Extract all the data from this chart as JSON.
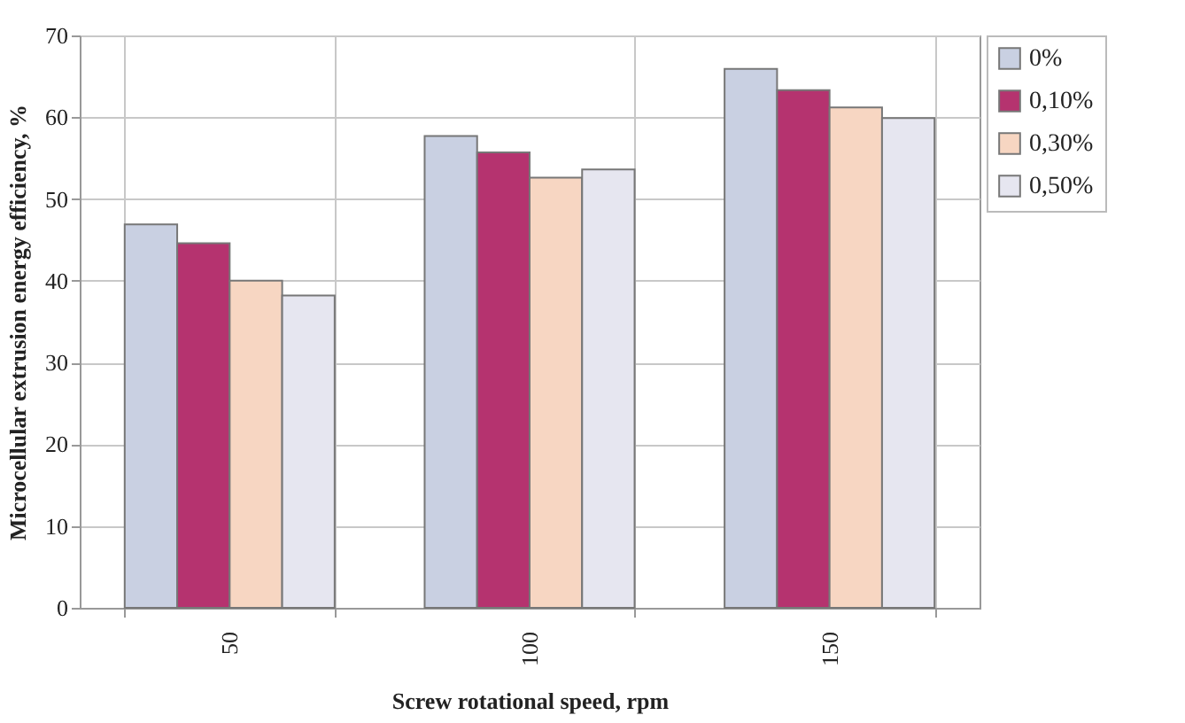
{
  "chart_data": {
    "type": "bar",
    "xlabel": "Screw rotational speed, rpm",
    "ylabel": "Microcellular extrusion energy efficiency, %",
    "categories": [
      "50",
      "100",
      "150"
    ],
    "series": [
      {
        "name": "0%",
        "color": "#c9d0e2",
        "values": [
          46.9,
          57.7,
          65.9
        ]
      },
      {
        "name": "0,10%",
        "color": "#b5336f",
        "values": [
          44.6,
          55.7,
          63.3
        ]
      },
      {
        "name": "0,30%",
        "color": "#f7d6c2",
        "values": [
          40.0,
          52.6,
          61.2
        ]
      },
      {
        "name": "0,50%",
        "color": "#e6e6f0",
        "values": [
          38.2,
          53.6,
          59.9
        ]
      }
    ],
    "ylim": [
      0,
      70
    ],
    "yticks": [
      0,
      10,
      20,
      30,
      40,
      50,
      60,
      70
    ],
    "grid": true,
    "legend": "right"
  }
}
